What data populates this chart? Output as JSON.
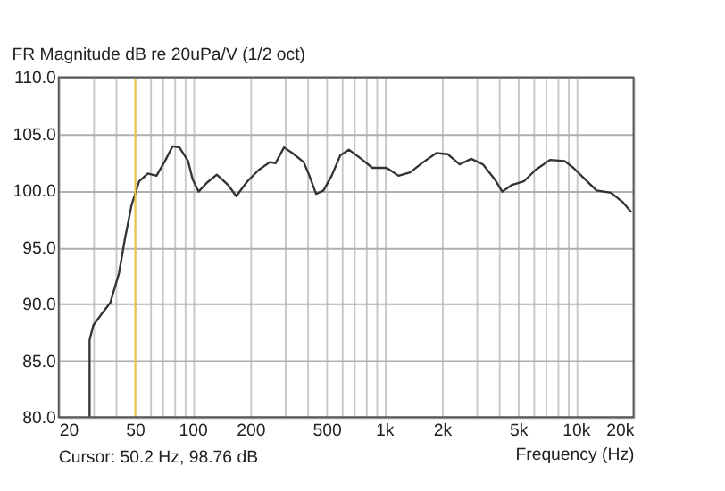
{
  "chart_data": {
    "type": "line",
    "title": "FR Magnitude dB re 20uPa/V (1/2 oct)",
    "xlabel": "Frequency (Hz)",
    "annotations": [
      "Cursor: 50.2 Hz, 98.76 dB"
    ],
    "log": "x",
    "grid": true,
    "marker": "none",
    "line_style": "solid",
    "xlim": [
      20,
      20000
    ],
    "ylim": [
      80,
      110
    ],
    "xticks": [
      20,
      {
        "value": 30,
        "label": null
      },
      {
        "value": 40,
        "label": null
      },
      50,
      {
        "value": 60,
        "label": null
      },
      {
        "value": 70,
        "label": null
      },
      {
        "value": 80,
        "label": null
      },
      {
        "value": 90,
        "label": null
      },
      100,
      200,
      {
        "value": 300,
        "label": null
      },
      {
        "value": 400,
        "label": null
      },
      500,
      {
        "value": 600,
        "label": null
      },
      {
        "value": 700,
        "label": null
      },
      {
        "value": 800,
        "label": null
      },
      {
        "value": 900,
        "label": null
      },
      {
        "value": 1000,
        "label": "1k"
      },
      {
        "value": 2000,
        "label": "2k"
      },
      {
        "value": 3000,
        "label": null
      },
      {
        "value": 4000,
        "label": null
      },
      {
        "value": 5000,
        "label": "5k"
      },
      {
        "value": 6000,
        "label": null
      },
      {
        "value": 7000,
        "label": null
      },
      {
        "value": 8000,
        "label": null
      },
      {
        "value": 9000,
        "label": null
      },
      {
        "value": 10000,
        "label": "10k"
      },
      {
        "value": 20000,
        "label": "20k"
      }
    ],
    "yticks": [
      {
        "value": 80,
        "label": "80.0"
      },
      {
        "value": 85,
        "label": "85.0"
      },
      {
        "value": 90,
        "label": "90.0"
      },
      {
        "value": 95,
        "label": "95.0"
      },
      {
        "value": 100,
        "label": "100.0"
      },
      {
        "value": 105,
        "label": "105.0"
      },
      {
        "value": 110,
        "label": "110.0"
      }
    ],
    "ref_lines": [
      {
        "axis": "x",
        "value": 50.2,
        "color": "#e8c840"
      }
    ],
    "series": [
      {
        "color": "#333333",
        "x": [
          29,
          29,
          30.3,
          33.5,
          37.2,
          41.3,
          44.3,
          48,
          52.6,
          58.4,
          64.8,
          71.8,
          78.6,
          85.4,
          94.7,
          100,
          107.5,
          119,
          133.8,
          153,
          169,
          193,
          221,
          253,
          271,
          300,
          332,
          380,
          407,
          441,
          482,
          532,
          590,
          654,
          758,
          867,
          1030,
          1187,
          1366,
          1570,
          1869,
          2150,
          2475,
          2845,
          3280,
          3770,
          4130,
          4650,
          5350,
          6150,
          7330,
          8740,
          9710,
          11150,
          12830,
          15270,
          17500,
          19460
        ],
        "values": [
          80,
          86.8,
          88.1,
          89.1,
          90.1,
          92.7,
          95.7,
          98.7,
          100.8,
          101.5,
          101.3,
          102.6,
          103.9,
          103.8,
          102.6,
          101.0,
          99.9,
          100.7,
          101.4,
          100.5,
          99.5,
          100.8,
          101.8,
          102.5,
          102.4,
          103.8,
          103.3,
          102.5,
          101.3,
          99.7,
          100.0,
          101.3,
          103.1,
          103.6,
          102.8,
          102.0,
          102.0,
          101.3,
          101.6,
          102.4,
          103.3,
          103.2,
          102.3,
          102.8,
          102.3,
          101.0,
          99.9,
          100.5,
          100.8,
          101.8,
          102.7,
          102.6,
          102.0,
          101.0,
          100.0,
          99.8,
          99.0,
          98.1
        ]
      }
    ]
  }
}
